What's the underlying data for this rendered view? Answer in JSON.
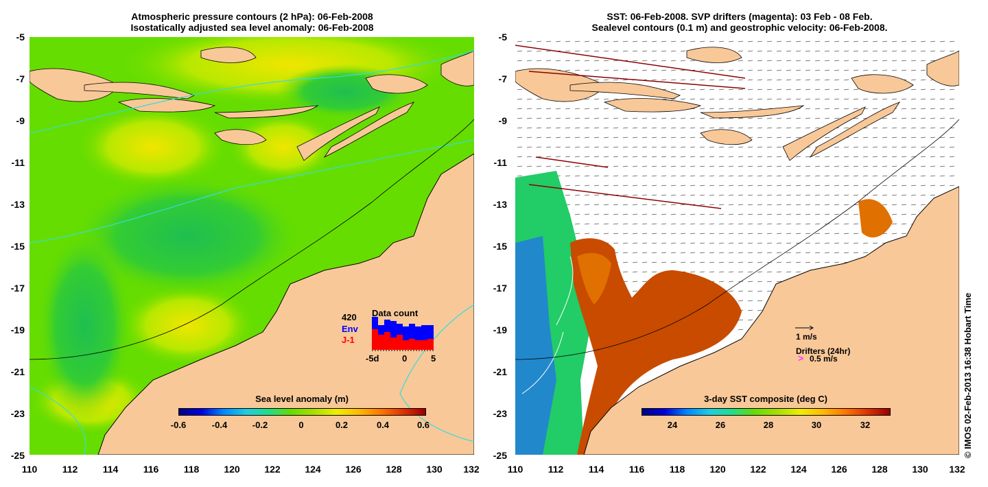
{
  "left_panel": {
    "title_line1": "Atmospheric pressure contours (2 hPa): 06-Feb-2008",
    "title_line2": "Isostatically adjusted sea level anomaly: 06-Feb-2008",
    "colorbar": {
      "title": "Sea level anomaly (m)",
      "ticks": [
        "-0.6",
        "-0.4",
        "-0.2",
        "0",
        "0.2",
        "0.4",
        "0.6"
      ],
      "range": [
        -0.6,
        0.6
      ]
    },
    "data_count": {
      "title": "Data count",
      "max_label": "420",
      "env_label": "Env",
      "j1_label": "J-1",
      "x_ticks": [
        "-5d",
        "0",
        "5"
      ],
      "env_color": "#0000ff",
      "j1_color": "#ff0000"
    }
  },
  "right_panel": {
    "title_line1": "SST: 06-Feb-2008. SVP drifters (magenta): 03 Feb - 08 Feb.",
    "title_line2": "Sealevel contours (0.1 m) and geostrophic velocity: 06-Feb-2008.",
    "colorbar": {
      "title": "3-day SST composite (deg C)",
      "ticks": [
        "24",
        "26",
        "28",
        "30",
        "32"
      ],
      "range": [
        22.5,
        33
      ]
    },
    "velocity_scale_label": "1 m/s",
    "drifters_label": "Drifters (24hr)",
    "drifters_speed_label": "0.5 m/s",
    "drifter_marker": ">"
  },
  "axes": {
    "x_ticks": [
      "110",
      "112",
      "114",
      "116",
      "118",
      "120",
      "122",
      "124",
      "126",
      "128",
      "130",
      "132"
    ],
    "y_ticks": [
      "-5",
      "-7",
      "-9",
      "-11",
      "-13",
      "-15",
      "-17",
      "-19",
      "-21",
      "-23",
      "-25"
    ],
    "lon_range": [
      110,
      132
    ],
    "lat_range": [
      -25,
      -5
    ]
  },
  "credit": "© IMOS 02-Feb-2013 16:38 Hobart Time",
  "colors": {
    "land": "#f8c898",
    "ocean_green": "#66dd00",
    "contour_cyan": "#33dddd",
    "sst_hot": "#c84b00"
  }
}
